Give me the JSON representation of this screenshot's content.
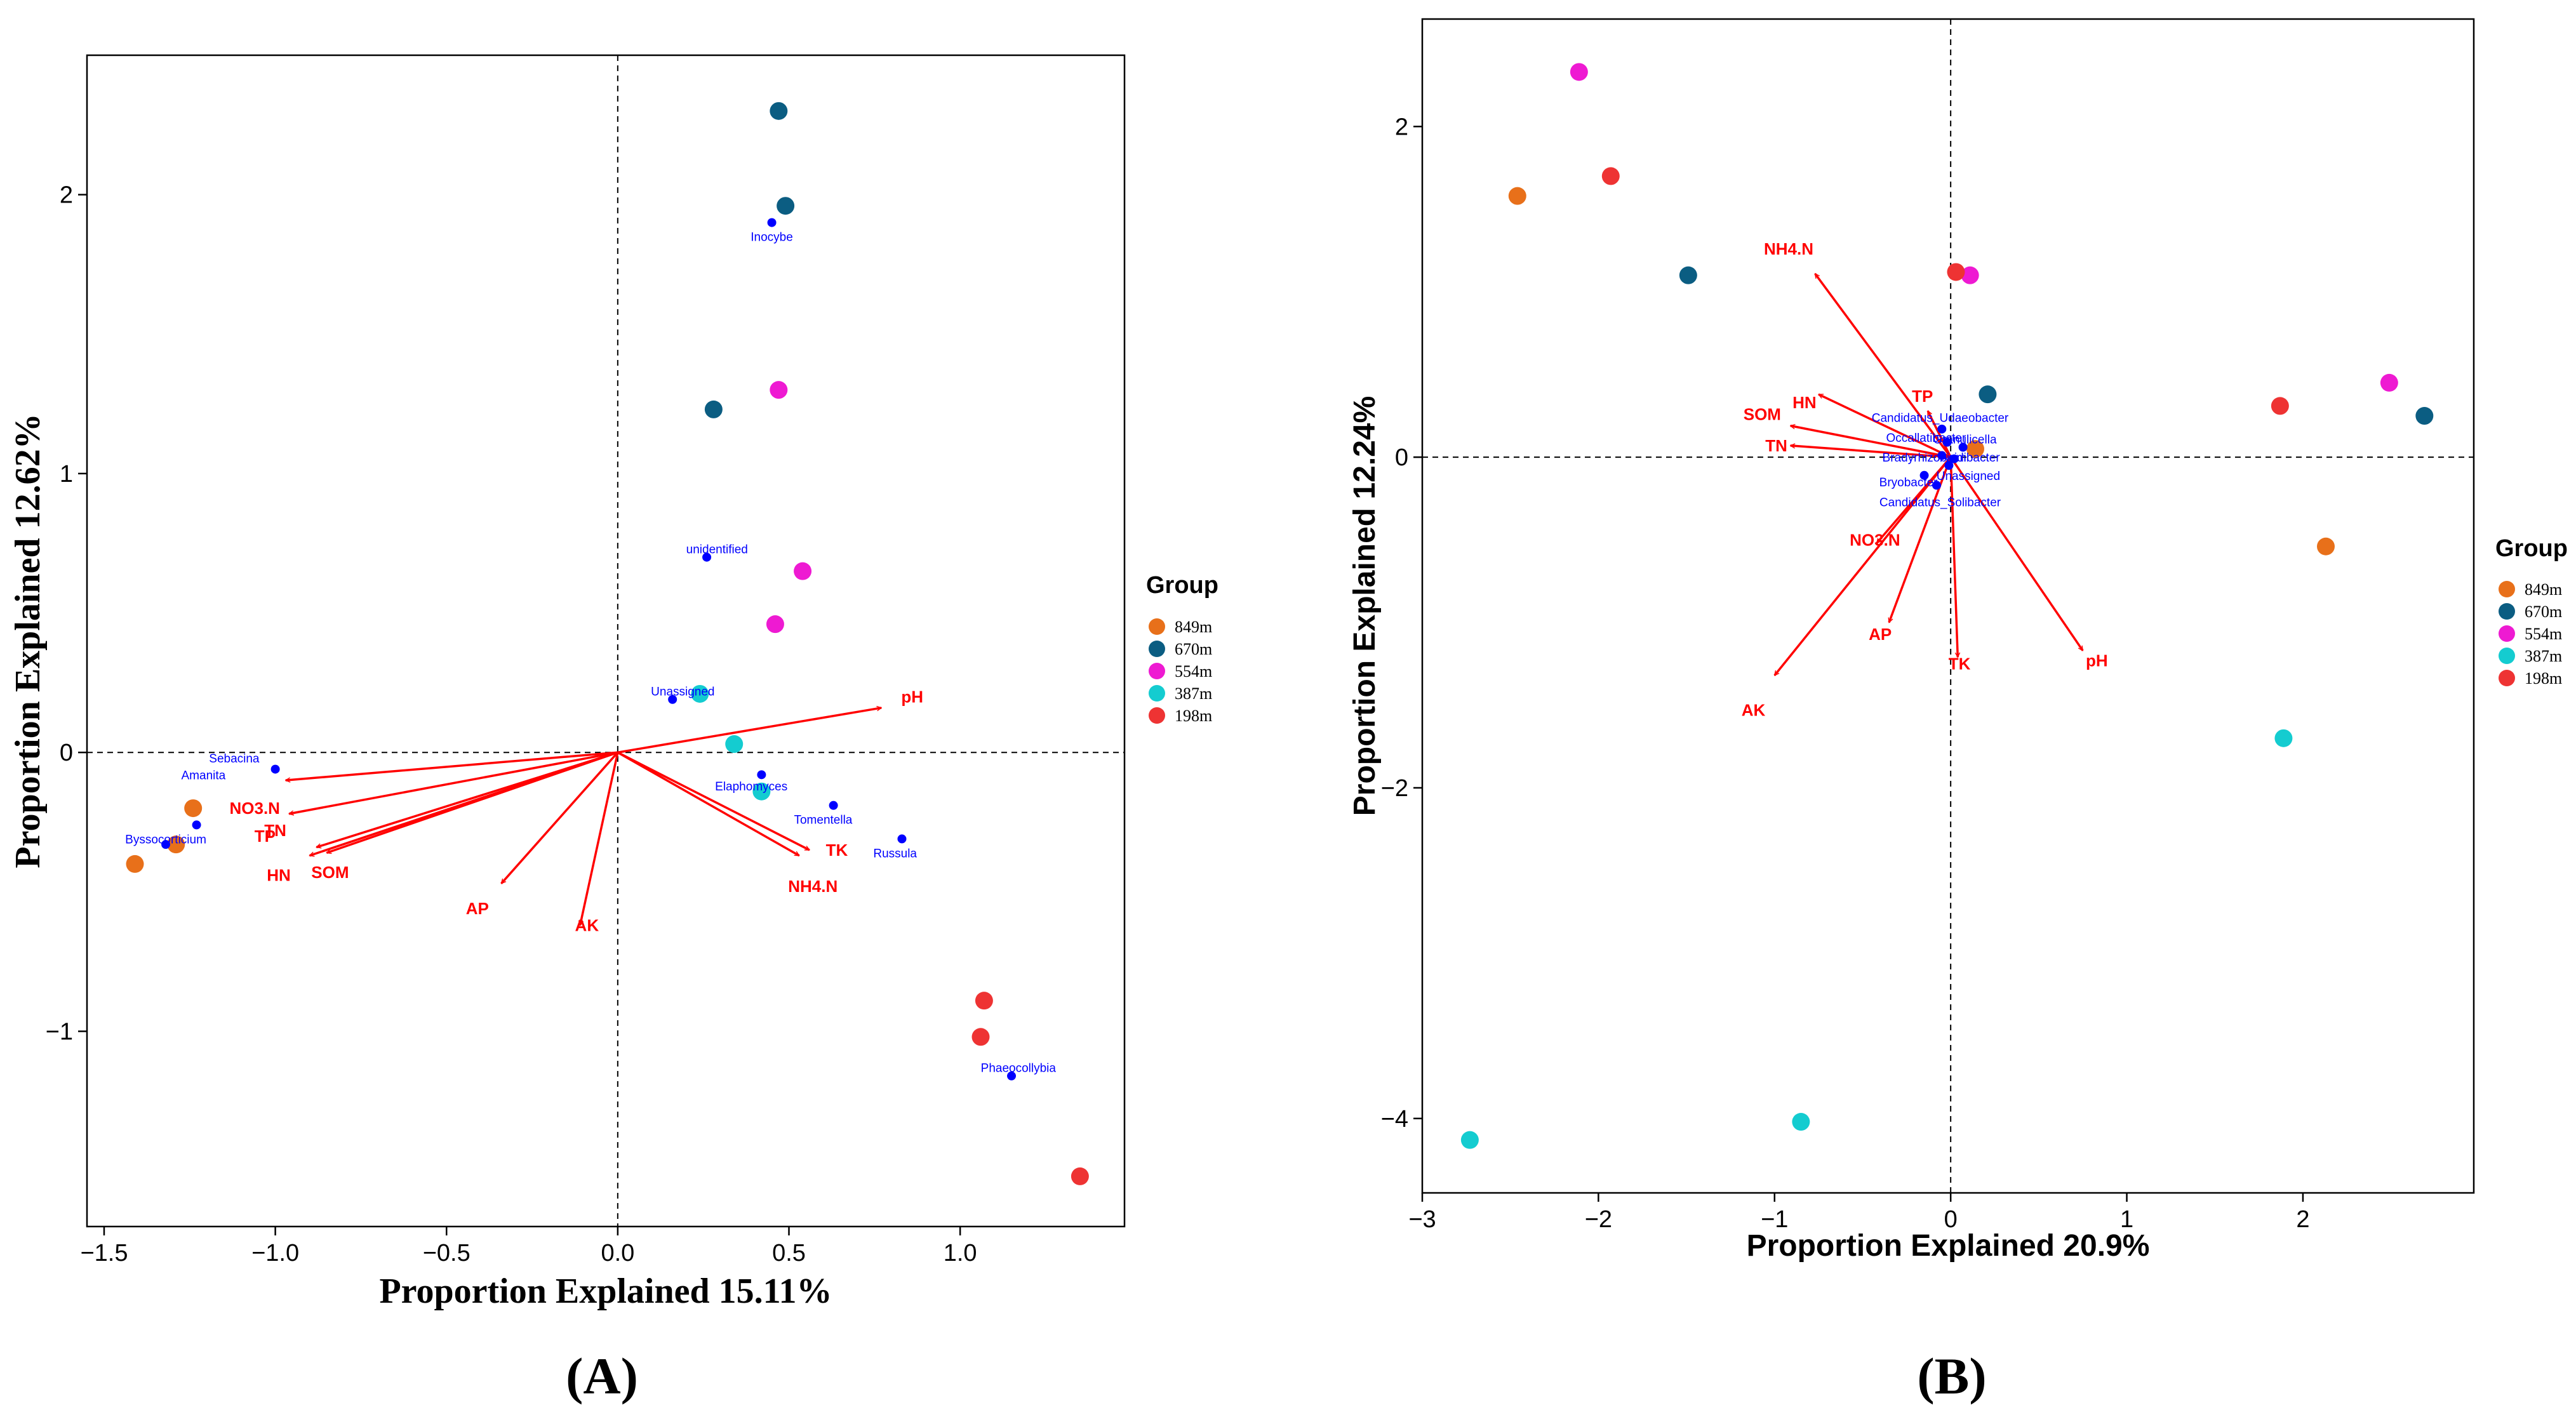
{
  "legend_title": "Group",
  "groups": [
    {
      "name": "849m",
      "color": "#e8701a"
    },
    {
      "name": "670m",
      "color": "#0b5d82"
    },
    {
      "name": "554m",
      "color": "#ee1ad2"
    },
    {
      "name": "387m",
      "color": "#14ccd0"
    },
    {
      "name": "198m",
      "color": "#ee3333"
    }
  ],
  "chart_data": [
    {
      "type": "scatter",
      "panel_label": "(A)",
      "xlabel": "Proportion Explained 15.11%",
      "ylabel": "Proportion Explained 12.62%",
      "xlim": [
        -1.55,
        1.48
      ],
      "ylim": [
        -1.7,
        2.5
      ],
      "xticks": [
        -1.5,
        -1.0,
        -0.5,
        0.0,
        0.5,
        1.0
      ],
      "xtick_labels": [
        "−1.5",
        "−1.0",
        "−0.5",
        "0.0",
        "0.5",
        "1.0"
      ],
      "yticks": [
        -1,
        0,
        1,
        2
      ],
      "ytick_labels": [
        "−1",
        "0",
        "1",
        "2"
      ],
      "points": [
        {
          "group": "849m",
          "x": -1.24,
          "y": -0.2
        },
        {
          "group": "849m",
          "x": -1.29,
          "y": -0.33
        },
        {
          "group": "849m",
          "x": -1.41,
          "y": -0.4
        },
        {
          "group": "670m",
          "x": 0.47,
          "y": 2.3
        },
        {
          "group": "670m",
          "x": 0.49,
          "y": 1.96
        },
        {
          "group": "670m",
          "x": 0.28,
          "y": 1.23
        },
        {
          "group": "554m",
          "x": 0.47,
          "y": 1.3
        },
        {
          "group": "554m",
          "x": 0.54,
          "y": 0.65
        },
        {
          "group": "554m",
          "x": 0.46,
          "y": 0.46
        },
        {
          "group": "387m",
          "x": 0.24,
          "y": 0.21
        },
        {
          "group": "387m",
          "x": 0.34,
          "y": 0.03
        },
        {
          "group": "387m",
          "x": 0.42,
          "y": -0.14
        },
        {
          "group": "198m",
          "x": 1.07,
          "y": -0.89
        },
        {
          "group": "198m",
          "x": 1.06,
          "y": -1.02
        },
        {
          "group": "198m",
          "x": 1.35,
          "y": -1.52
        }
      ],
      "vectors": [
        {
          "name": "pH",
          "x": 0.77,
          "y": 0.16,
          "lx": 0.86,
          "ly": 0.2
        },
        {
          "name": "TP",
          "x": -0.97,
          "y": -0.1,
          "lx": -1.03,
          "ly": -0.3
        },
        {
          "name": "NO3.N",
          "x": -0.96,
          "y": -0.22,
          "lx": -1.06,
          "ly": -0.2
        },
        {
          "name": "TN",
          "x": -0.88,
          "y": -0.34,
          "lx": -1.0,
          "ly": -0.28
        },
        {
          "name": "SOM",
          "x": -0.85,
          "y": -0.36,
          "lx": -0.84,
          "ly": -0.43
        },
        {
          "name": "HN",
          "x": -0.9,
          "y": -0.37,
          "lx": -0.99,
          "ly": -0.44
        },
        {
          "name": "AP",
          "x": -0.34,
          "y": -0.47,
          "lx": -0.41,
          "ly": -0.56
        },
        {
          "name": "AK",
          "x": -0.11,
          "y": -0.62,
          "lx": -0.09,
          "ly": -0.62
        },
        {
          "name": "TK",
          "x": 0.56,
          "y": -0.35,
          "lx": 0.64,
          "ly": -0.35
        },
        {
          "name": "NH4.N",
          "x": 0.53,
          "y": -0.37,
          "lx": 0.57,
          "ly": -0.48
        }
      ],
      "taxa": [
        {
          "name": "Inocybe",
          "x": 0.45,
          "y": 1.9,
          "lx": 0.45,
          "ly": 1.85
        },
        {
          "name": "unidentified",
          "x": 0.26,
          "y": 0.7,
          "lx": 0.29,
          "ly": 0.73
        },
        {
          "name": "Unassigned",
          "x": 0.16,
          "y": 0.19,
          "lx": 0.19,
          "ly": 0.22
        },
        {
          "name": "Sebacina",
          "x": -1.0,
          "y": -0.06,
          "lx": -1.12,
          "ly": -0.02
        },
        {
          "name": "Elaphomyces",
          "x": 0.42,
          "y": -0.08,
          "lx": 0.39,
          "ly": -0.12
        },
        {
          "name": "Tomentella",
          "x": 0.63,
          "y": -0.19,
          "lx": 0.6,
          "ly": -0.24
        },
        {
          "name": "Russula",
          "x": 0.83,
          "y": -0.31,
          "lx": 0.81,
          "ly": -0.36
        },
        {
          "name": "Amanita",
          "x": -1.23,
          "y": -0.26,
          "lx": -1.21,
          "ly": -0.08
        },
        {
          "name": "Byssocorticium",
          "x": -1.32,
          "y": -0.33,
          "lx": -1.32,
          "ly": -0.31
        },
        {
          "name": "Phaeocollybia",
          "x": 1.15,
          "y": -1.16,
          "lx": 1.17,
          "ly": -1.13
        }
      ]
    },
    {
      "type": "scatter",
      "panel_label": "(B)",
      "xlabel": "Proportion Explained 20.9%",
      "ylabel": "Proportion Explained 12.24%",
      "xlim": [
        -3.0,
        2.97
      ],
      "ylim": [
        -4.45,
        2.65
      ],
      "xticks": [
        -3,
        -2,
        -1,
        0,
        1,
        2
      ],
      "xtick_labels": [
        "−3",
        "−2",
        "−1",
        "0",
        "1",
        "2"
      ],
      "yticks": [
        -4,
        -2,
        0,
        2
      ],
      "ytick_labels": [
        "−4",
        "−2",
        "0",
        "2"
      ],
      "points": [
        {
          "group": "849m",
          "x": -2.46,
          "y": 1.58
        },
        {
          "group": "849m",
          "x": 0.14,
          "y": 0.05
        },
        {
          "group": "849m",
          "x": 2.13,
          "y": -0.54
        },
        {
          "group": "670m",
          "x": -1.49,
          "y": 1.1
        },
        {
          "group": "670m",
          "x": 0.21,
          "y": 0.38
        },
        {
          "group": "670m",
          "x": 2.69,
          "y": 0.25
        },
        {
          "group": "554m",
          "x": -2.11,
          "y": 2.33
        },
        {
          "group": "554m",
          "x": 0.11,
          "y": 1.1
        },
        {
          "group": "554m",
          "x": 2.49,
          "y": 0.45
        },
        {
          "group": "387m",
          "x": 1.89,
          "y": -1.7
        },
        {
          "group": "387m",
          "x": -0.85,
          "y": -4.02
        },
        {
          "group": "387m",
          "x": -2.73,
          "y": -4.13
        },
        {
          "group": "198m",
          "x": -1.93,
          "y": 1.7
        },
        {
          "group": "198m",
          "x": 0.03,
          "y": 1.12
        },
        {
          "group": "198m",
          "x": 1.87,
          "y": 0.31
        }
      ],
      "vectors": [
        {
          "name": "NH4.N",
          "x": -0.77,
          "y": 1.11,
          "lx": -0.92,
          "ly": 1.26
        },
        {
          "name": "TP",
          "x": -0.13,
          "y": 0.28,
          "lx": -0.16,
          "ly": 0.37
        },
        {
          "name": "HN",
          "x": -0.75,
          "y": 0.38,
          "lx": -0.83,
          "ly": 0.33
        },
        {
          "name": "SOM",
          "x": -0.91,
          "y": 0.19,
          "lx": -1.07,
          "ly": 0.26
        },
        {
          "name": "TN",
          "x": -0.91,
          "y": 0.07,
          "lx": -0.99,
          "ly": 0.07
        },
        {
          "name": "NO3.N",
          "x": -0.42,
          "y": -0.52,
          "lx": -0.43,
          "ly": -0.5
        },
        {
          "name": "AP",
          "x": -0.35,
          "y": -1.0,
          "lx": -0.4,
          "ly": -1.07
        },
        {
          "name": "AK",
          "x": -1.0,
          "y": -1.32,
          "lx": -1.12,
          "ly": -1.53
        },
        {
          "name": "TK",
          "x": 0.04,
          "y": -1.21,
          "lx": 0.05,
          "ly": -1.25
        },
        {
          "name": "pH",
          "x": 0.75,
          "y": -1.17,
          "lx": 0.83,
          "ly": -1.23
        }
      ],
      "taxa": [
        {
          "name": "Candidatus_Udaeobacter",
          "x": -0.05,
          "y": 0.17,
          "lx": -0.06,
          "ly": 0.24
        },
        {
          "name": "Granulicella",
          "x": 0.07,
          "y": 0.06,
          "lx": 0.08,
          "ly": 0.11
        },
        {
          "name": "Occallatibacter",
          "x": -0.02,
          "y": 0.09,
          "lx": -0.14,
          "ly": 0.12
        },
        {
          "name": "Bradyrhizobium",
          "x": -0.05,
          "y": 0.01,
          "lx": -0.15,
          "ly": 0.0
        },
        {
          "name": "Acidibacter",
          "x": 0.02,
          "y": -0.01,
          "lx": 0.11,
          "ly": 0.0
        },
        {
          "name": "Unassigned",
          "x": -0.01,
          "y": -0.05,
          "lx": 0.1,
          "ly": -0.11
        },
        {
          "name": "Bryobacter",
          "x": -0.15,
          "y": -0.11,
          "lx": -0.24,
          "ly": -0.15
        },
        {
          "name": "Candidatus_Solibacter",
          "x": -0.08,
          "y": -0.17,
          "lx": -0.06,
          "ly": -0.27
        }
      ]
    }
  ]
}
